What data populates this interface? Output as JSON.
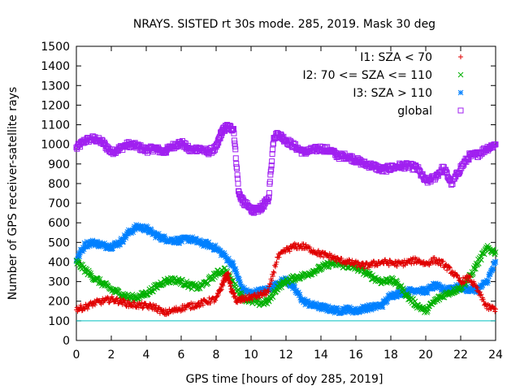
{
  "chart_data": {
    "type": "scatter",
    "title": "NRAYS. SISTED rt 30s mode. 285, 2019. Mask 30 deg",
    "xlabel": "GPS time [hours of doy 285, 2019]",
    "ylabel": "Number of GPS receiver-satellite rays",
    "xlim": [
      0,
      24
    ],
    "ylim": [
      0,
      1500
    ],
    "xticks": [
      "0",
      "2",
      "4",
      "6",
      "8",
      "10",
      "12",
      "14",
      "16",
      "18",
      "20",
      "22",
      "24"
    ],
    "yticks": [
      "0",
      "100",
      "200",
      "300",
      "400",
      "500",
      "600",
      "700",
      "800",
      "900",
      "1000",
      "1100",
      "1200",
      "1300",
      "1400",
      "1500"
    ],
    "legend_position": "top-right",
    "threshold_line": {
      "y": 100,
      "color": "#00c0c0"
    },
    "series": [
      {
        "name": "I1: SZA < 70",
        "color": "#e00000",
        "marker": "+",
        "x": [
          0,
          0.5,
          1,
          1.5,
          2,
          2.5,
          3,
          3.5,
          4,
          4.5,
          5,
          5.5,
          6,
          6.5,
          7,
          7.5,
          8,
          8.3,
          8.5,
          8.7,
          8.9,
          9.2,
          9.5,
          10,
          10.5,
          11,
          11.5,
          12,
          12.5,
          13,
          13.5,
          14,
          14.5,
          15,
          15.5,
          16,
          16.5,
          17,
          17.5,
          18,
          18.5,
          19,
          19.5,
          20,
          20.5,
          21,
          21.5,
          22,
          22.5,
          23,
          23.5,
          24
        ],
        "y": [
          160,
          170,
          190,
          200,
          210,
          200,
          185,
          180,
          175,
          170,
          140,
          150,
          165,
          175,
          185,
          200,
          210,
          270,
          320,
          330,
          250,
          200,
          210,
          220,
          230,
          250,
          420,
          460,
          480,
          480,
          460,
          440,
          430,
          410,
          400,
          390,
          380,
          390,
          400,
          395,
          390,
          400,
          410,
          390,
          410,
          390,
          350,
          300,
          320,
          250,
          170,
          160
        ]
      },
      {
        "name": "I2: 70 <= SZA <= 110",
        "color": "#00b000",
        "marker": "x",
        "x": [
          0,
          0.5,
          1,
          1.5,
          2,
          2.5,
          3,
          3.5,
          4,
          4.5,
          5,
          5.5,
          6,
          6.5,
          7,
          7.5,
          8,
          8.5,
          9,
          9.5,
          10,
          10.5,
          11,
          11.5,
          12,
          12.5,
          13,
          13.5,
          14,
          14.5,
          15,
          15.5,
          16,
          16.5,
          17,
          17.5,
          18,
          18.5,
          19,
          19.5,
          20,
          20.5,
          21,
          21.5,
          22,
          22.5,
          23,
          23.5,
          24
        ],
        "y": [
          400,
          360,
          320,
          290,
          260,
          240,
          220,
          220,
          240,
          270,
          300,
          310,
          300,
          280,
          270,
          300,
          340,
          360,
          290,
          220,
          200,
          190,
          200,
          270,
          300,
          320,
          330,
          350,
          370,
          390,
          390,
          380,
          370,
          350,
          320,
          300,
          310,
          280,
          220,
          180,
          150,
          200,
          230,
          250,
          270,
          320,
          400,
          470,
          450
        ]
      },
      {
        "name": "I3: SZA > 110",
        "color": "#0080ff",
        "marker": "*",
        "x": [
          0,
          0.5,
          1,
          1.5,
          2,
          2.5,
          3,
          3.5,
          4,
          4.5,
          5,
          5.5,
          6,
          6.5,
          7,
          7.5,
          8,
          8.5,
          9,
          9.5,
          10,
          10.5,
          11,
          11.5,
          12,
          12.5,
          13,
          13.5,
          14,
          14.5,
          15,
          15.5,
          16,
          16.5,
          17,
          17.5,
          18,
          18.5,
          19,
          19.5,
          20,
          20.5,
          21,
          21.5,
          22,
          22.5,
          23,
          23.5,
          24
        ],
        "y": [
          410,
          490,
          500,
          485,
          480,
          500,
          550,
          580,
          570,
          540,
          520,
          510,
          510,
          520,
          500,
          490,
          470,
          430,
          380,
          260,
          240,
          250,
          260,
          290,
          310,
          260,
          200,
          180,
          170,
          160,
          150,
          160,
          150,
          165,
          170,
          180,
          230,
          240,
          250,
          260,
          250,
          280,
          260,
          270,
          270,
          260,
          260,
          300,
          400
        ]
      },
      {
        "name": "global",
        "color": "#a020f0",
        "marker": "square",
        "x": [
          0,
          0.5,
          1,
          1.5,
          2,
          2.5,
          3,
          3.5,
          4,
          4.5,
          5,
          5.5,
          6,
          6.5,
          7,
          7.5,
          8,
          8.3,
          8.6,
          9,
          9.3,
          9.6,
          10,
          10.3,
          10.6,
          11,
          11.3,
          11.6,
          12,
          12.5,
          13,
          13.5,
          14,
          14.5,
          15,
          15.5,
          16,
          16.5,
          17,
          17.5,
          18,
          18.5,
          19,
          19.5,
          20,
          20.5,
          21,
          21.5,
          22,
          22.5,
          23,
          23.5,
          24
        ],
        "y": [
          980,
          1020,
          1030,
          1010,
          960,
          980,
          1000,
          990,
          970,
          980,
          960,
          990,
          1010,
          970,
          980,
          960,
          980,
          1060,
          1090,
          1080,
          750,
          700,
          670,
          660,
          680,
          720,
          1040,
          1050,
          1020,
          990,
          960,
          970,
          980,
          970,
          940,
          940,
          920,
          900,
          890,
          870,
          880,
          890,
          890,
          880,
          810,
          830,
          880,
          800,
          880,
          940,
          950,
          980,
          1000
        ]
      }
    ]
  }
}
